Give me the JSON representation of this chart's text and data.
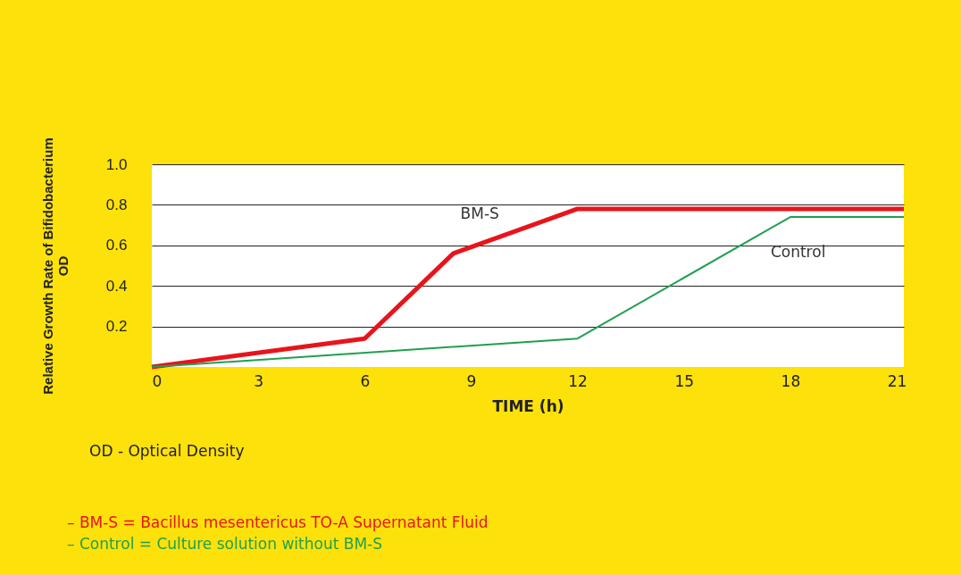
{
  "chart_data": {
    "type": "line",
    "xlabel": "TIME (h)",
    "ylabel": "Relative Growth Rate of Bifidobacterium\nOD",
    "series": [
      {
        "name": "BM-S",
        "color": "#e8141c",
        "x": [
          0,
          6,
          8.5,
          12,
          21.2
        ],
        "values": [
          0.0,
          0.14,
          0.56,
          0.78,
          0.78
        ]
      },
      {
        "name": "Control",
        "color": "#1fa050",
        "x": [
          0,
          12,
          18,
          21.2
        ],
        "values": [
          0.0,
          0.14,
          0.74,
          0.74
        ]
      }
    ],
    "xlim": [
      0,
      21.2
    ],
    "xticks": [
      0,
      3,
      6,
      9,
      12,
      15,
      18,
      21
    ],
    "ylim": [
      0,
      1
    ],
    "yticks": [
      0.2,
      0.4,
      0.6,
      0.8,
      {
        "value": 1,
        "label": "1.0"
      }
    ],
    "grid": "y",
    "marker": "none",
    "line_style": "solid",
    "annotations": [
      "OD - Optical Density",
      "– BM-S = Bacillus mesentericus TO-A Supernatant Fluid",
      "– Control = Culture solution without BM-S"
    ]
  }
}
